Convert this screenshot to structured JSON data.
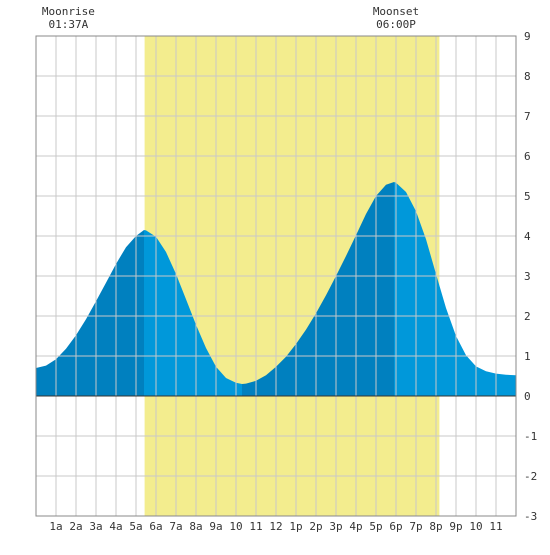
{
  "chart_data": {
    "type": "area",
    "title": "",
    "xlabel": "",
    "ylabel": "",
    "x_tick_labels": [
      "1a",
      "2a",
      "3a",
      "4a",
      "5a",
      "6a",
      "7a",
      "8a",
      "9a",
      "10",
      "11",
      "12",
      "1p",
      "2p",
      "3p",
      "4p",
      "5p",
      "6p",
      "7p",
      "8p",
      "9p",
      "10",
      "11"
    ],
    "xlim": [
      0,
      24
    ],
    "ylim": [
      -3,
      9
    ],
    "y_ticks": [
      -3,
      -2,
      -1,
      0,
      1,
      2,
      3,
      4,
      5,
      6,
      7,
      8,
      9
    ],
    "grid": true,
    "moonrise": {
      "label": "Moonrise",
      "time": "01:37A",
      "hour": 1.62
    },
    "moonset": {
      "label": "Moonset",
      "time": "06:00P",
      "hour": 18.0
    },
    "daylight": {
      "start_hour": 5.43,
      "end_hour": 20.17
    },
    "high_tides": [
      {
        "hour": 5.4,
        "height": 4.15
      },
      {
        "hour": 17.9,
        "height": 5.35
      }
    ],
    "low_tides": [
      {
        "hour": 10.3,
        "height": 0.3
      }
    ],
    "series": [
      {
        "x": [
          0,
          0.5,
          1,
          1.5,
          2,
          2.5,
          3,
          3.5,
          4,
          4.5,
          5,
          5.4,
          5.5,
          6,
          6.5,
          7,
          7.5,
          8,
          8.5,
          9,
          9.5,
          10,
          10.3,
          10.5,
          11,
          11.5,
          12,
          12.5,
          13,
          13.5,
          14,
          14.5,
          15,
          15.5,
          16,
          16.5,
          17,
          17.5,
          17.9,
          18,
          18.5,
          19,
          19.5,
          20,
          20.5,
          21,
          21.5,
          22,
          22.5,
          23,
          23.5,
          24
        ],
        "values": [
          0.7,
          0.76,
          0.92,
          1.18,
          1.52,
          1.92,
          2.37,
          2.83,
          3.3,
          3.72,
          4.0,
          4.15,
          4.14,
          3.98,
          3.6,
          3.05,
          2.42,
          1.78,
          1.2,
          0.73,
          0.45,
          0.33,
          0.3,
          0.31,
          0.38,
          0.52,
          0.73,
          0.98,
          1.3,
          1.66,
          2.07,
          2.52,
          3.0,
          3.5,
          4.02,
          4.55,
          5.0,
          5.28,
          5.35,
          5.33,
          5.1,
          4.62,
          3.92,
          3.05,
          2.2,
          1.5,
          1.02,
          0.74,
          0.62,
          0.56,
          0.53,
          0.52
        ]
      }
    ],
    "colors": {
      "daylight": "#f3ed8e",
      "tide_night": "#0080bf",
      "tide_day": "#0098da",
      "grid": "#c8c8c8",
      "frame": "#888888",
      "zero_line": "#333333",
      "text": "#333333"
    }
  }
}
